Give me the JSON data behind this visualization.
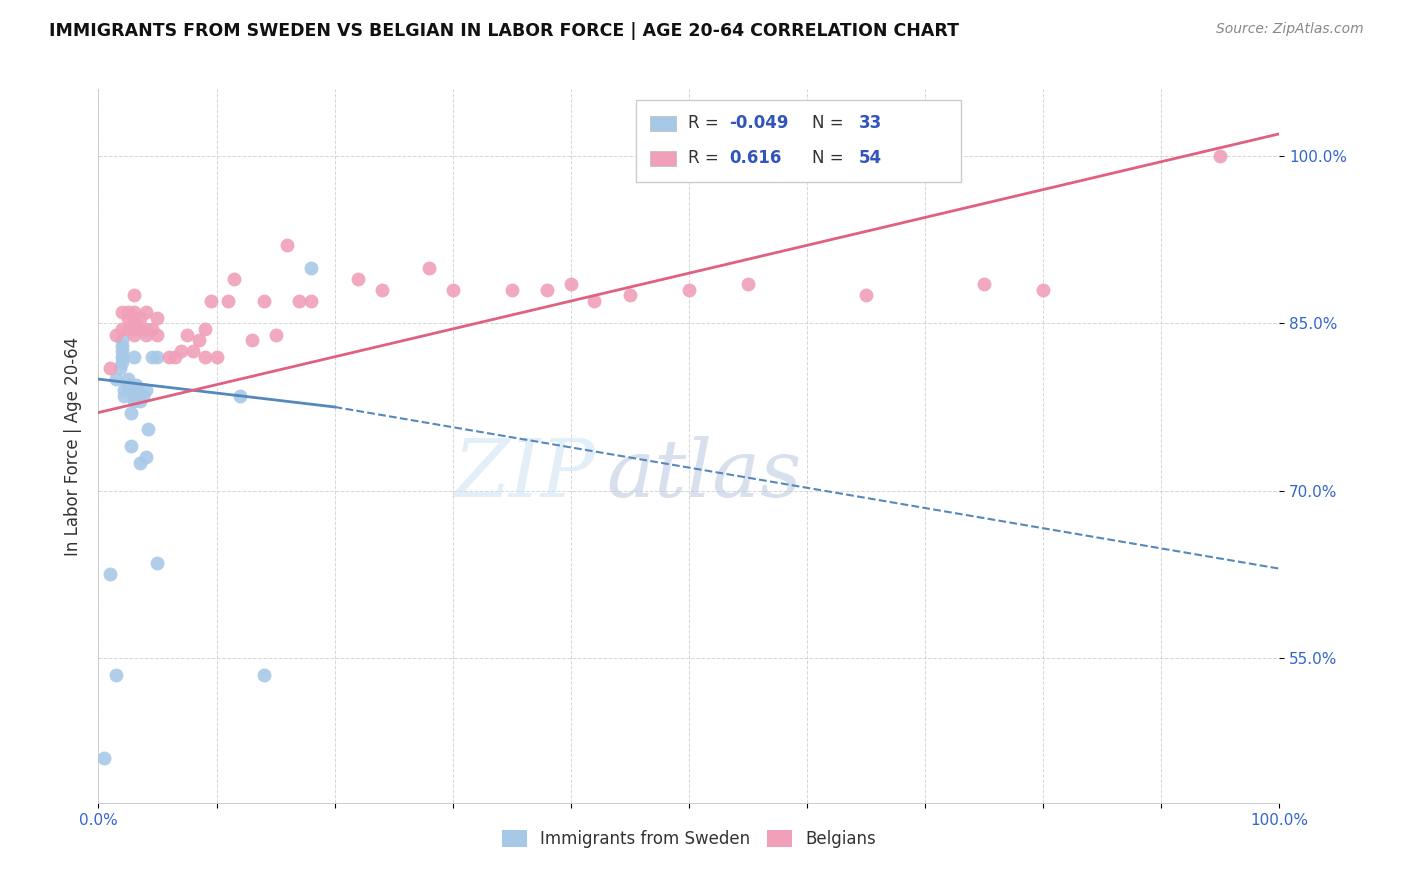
{
  "title": "IMMIGRANTS FROM SWEDEN VS BELGIAN IN LABOR FORCE | AGE 20-64 CORRELATION CHART",
  "source": "Source: ZipAtlas.com",
  "ylabel": "In Labor Force | Age 20-64",
  "xlim": [
    0.0,
    1.0
  ],
  "ylim": [
    0.42,
    1.06
  ],
  "y_ticks": [
    0.55,
    0.7,
    0.85,
    1.0
  ],
  "y_tick_labels": [
    "55.0%",
    "70.0%",
    "85.0%",
    "100.0%"
  ],
  "background_color": "#ffffff",
  "watermark_zip": "ZIP",
  "watermark_atlas": "atlas",
  "sweden_color": "#a8c8e8",
  "belgian_color": "#f0a0b8",
  "sweden_line_color": "#5588bb",
  "belgian_line_color": "#e06080",
  "sweden_scatter_x": [
    0.005,
    0.01,
    0.015,
    0.015,
    0.018,
    0.02,
    0.02,
    0.02,
    0.02,
    0.02,
    0.022,
    0.022,
    0.025,
    0.025,
    0.028,
    0.028,
    0.03,
    0.03,
    0.03,
    0.032,
    0.032,
    0.035,
    0.035,
    0.038,
    0.04,
    0.04,
    0.042,
    0.045,
    0.05,
    0.05,
    0.12,
    0.14,
    0.18
  ],
  "sweden_scatter_y": [
    0.46,
    0.625,
    0.535,
    0.8,
    0.81,
    0.815,
    0.82,
    0.825,
    0.83,
    0.835,
    0.785,
    0.79,
    0.795,
    0.8,
    0.74,
    0.77,
    0.78,
    0.785,
    0.82,
    0.79,
    0.795,
    0.725,
    0.78,
    0.785,
    0.73,
    0.79,
    0.755,
    0.82,
    0.635,
    0.82,
    0.785,
    0.535,
    0.9
  ],
  "belgian_scatter_x": [
    0.01,
    0.015,
    0.02,
    0.02,
    0.025,
    0.025,
    0.025,
    0.03,
    0.03,
    0.03,
    0.03,
    0.03,
    0.03,
    0.035,
    0.035,
    0.04,
    0.04,
    0.04,
    0.045,
    0.05,
    0.05,
    0.06,
    0.065,
    0.07,
    0.075,
    0.08,
    0.085,
    0.09,
    0.09,
    0.095,
    0.1,
    0.11,
    0.115,
    0.13,
    0.14,
    0.15,
    0.16,
    0.17,
    0.18,
    0.22,
    0.24,
    0.28,
    0.3,
    0.35,
    0.38,
    0.4,
    0.42,
    0.45,
    0.5,
    0.55,
    0.65,
    0.75,
    0.8,
    0.95
  ],
  "belgian_scatter_y": [
    0.81,
    0.84,
    0.845,
    0.86,
    0.845,
    0.855,
    0.86,
    0.84,
    0.845,
    0.85,
    0.855,
    0.86,
    0.875,
    0.845,
    0.855,
    0.84,
    0.845,
    0.86,
    0.845,
    0.84,
    0.855,
    0.82,
    0.82,
    0.825,
    0.84,
    0.825,
    0.835,
    0.82,
    0.845,
    0.87,
    0.82,
    0.87,
    0.89,
    0.835,
    0.87,
    0.84,
    0.92,
    0.87,
    0.87,
    0.89,
    0.88,
    0.9,
    0.88,
    0.88,
    0.88,
    0.885,
    0.87,
    0.875,
    0.88,
    0.885,
    0.875,
    0.885,
    0.88,
    1.0
  ],
  "sweden_trend": [
    0.0,
    0.8,
    0.2,
    0.775
  ],
  "sweden_trend_dash": [
    0.2,
    0.775,
    1.0,
    0.63
  ],
  "belgian_trend": [
    0.0,
    0.77,
    1.0,
    1.02
  ],
  "legend_items": [
    {
      "label": "R = -0.049   N = 33",
      "color": "#a8c8e8"
    },
    {
      "label": "R =  0.616   N = 54",
      "color": "#f0a0b8"
    }
  ]
}
